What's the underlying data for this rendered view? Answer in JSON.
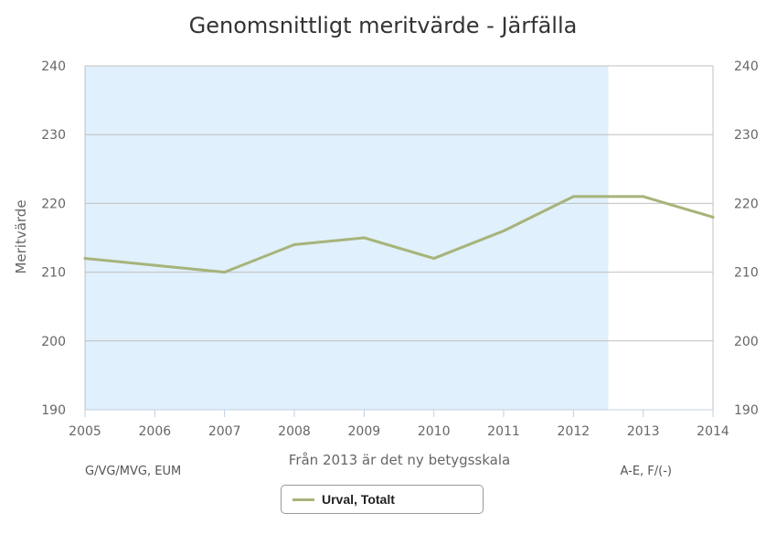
{
  "chart_data": {
    "type": "line",
    "title": "Genomsnittligt meritvärde - Järfälla",
    "xlabel": "Från 2013 är det ny betygsskala",
    "ylabel": "Meritvärde",
    "x": [
      2005,
      2006,
      2007,
      2008,
      2009,
      2010,
      2011,
      2012,
      2013,
      2014
    ],
    "xlim": [
      2005,
      2014
    ],
    "ylim": [
      190,
      240
    ],
    "y_ticks": [
      190,
      200,
      210,
      220,
      230,
      240
    ],
    "grid": true,
    "secondary_y_axis": true,
    "bands": [
      {
        "from": 2005,
        "to": 2012.5,
        "color": "#e0f0fc",
        "label": "G/VG/MVG, EUM"
      },
      {
        "from": 2012.5,
        "to": 2014,
        "color": "#ffffff",
        "label": "A-E, F/(-)"
      }
    ],
    "series": [
      {
        "name": "Urval, Totalt",
        "color": "#a6b47a",
        "values": [
          212,
          211,
          210,
          214,
          215,
          212,
          216,
          221,
          221,
          218
        ]
      }
    ],
    "legend": {
      "position": "bottom-center"
    }
  }
}
